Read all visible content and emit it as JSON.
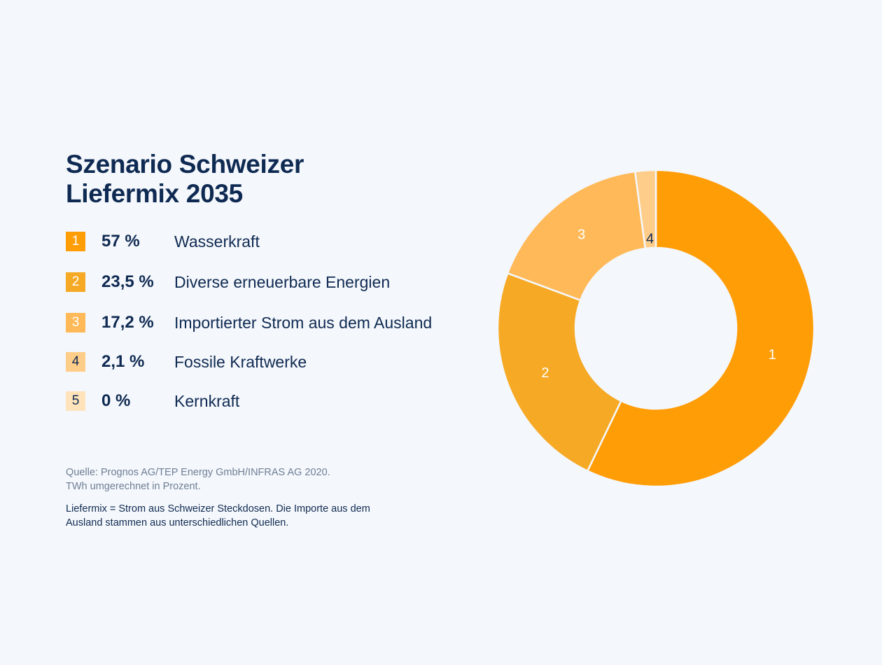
{
  "header": {
    "title_line1": "Szenario Schweizer",
    "title_line2": "Liefermix 2035"
  },
  "legend": [
    {
      "badge": "1",
      "pct": "57 %",
      "label": "Wasserkraft"
    },
    {
      "badge": "2",
      "pct": "23,5 %",
      "label": "Diverse erneuerbare Energien"
    },
    {
      "badge": "3",
      "pct": "17,2 %",
      "label": "Importierter Strom aus dem Ausland"
    },
    {
      "badge": "4",
      "pct": "2,1 %",
      "label": "Fossile Kraftwerke"
    },
    {
      "badge": "5",
      "pct": "0 %",
      "label": "Kernkraft"
    }
  ],
  "footer": {
    "source_line1": "Quelle: Prognos AG/TEP Energy GmbH/INFRAS AG 2020.",
    "source_line2": "TWh umgerechnet in Prozent.",
    "note_line1": "Liefermix = Strom aus Schweizer Steckdosen. Die Importe aus dem",
    "note_line2": "Ausland stammen aus unterschiedlichen Quellen."
  },
  "chart_data": {
    "type": "pie",
    "variant": "donut",
    "categories": [
      "1",
      "2",
      "3",
      "4",
      "5"
    ],
    "values": [
      57,
      23.5,
      17.2,
      2.1,
      0
    ],
    "colors": [
      "#ff9d07",
      "#f6a924",
      "#ffb958",
      "#ffcd8a",
      "#ffe3bb"
    ],
    "label_colors": [
      "#ffffff",
      "#ffffff",
      "#ffffff",
      "#0f2a52",
      "#0f2a52"
    ],
    "legend_position": "left"
  }
}
